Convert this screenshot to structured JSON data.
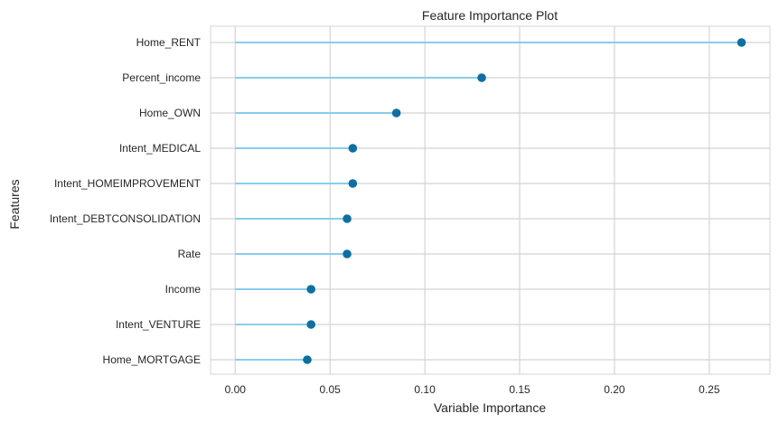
{
  "chart_data": {
    "type": "lollipop",
    "title": "Feature Importance Plot",
    "xlabel": "Variable Importance",
    "ylabel": "Features",
    "xlim": [
      -0.013,
      0.282
    ],
    "xticks": [
      0.0,
      0.05,
      0.1,
      0.15,
      0.2,
      0.25
    ],
    "xtick_labels": [
      "0.00",
      "0.05",
      "0.10",
      "0.15",
      "0.20",
      "0.25"
    ],
    "grid": true,
    "categories": [
      "Home_RENT",
      "Percent_income",
      "Home_OWN",
      "Intent_MEDICAL",
      "Intent_HOMEIMPROVEMENT",
      "Intent_DEBTCONSOLIDATION",
      "Rate",
      "Income",
      "Intent_VENTURE",
      "Home_MORTGAGE"
    ],
    "values": [
      0.267,
      0.13,
      0.085,
      0.062,
      0.062,
      0.059,
      0.059,
      0.04,
      0.04,
      0.038
    ],
    "colors": {
      "stem": "#87ceeb",
      "marker": "#0e6fa0",
      "grid": "#d4d4d4",
      "frame": "#d4d4d4"
    }
  }
}
